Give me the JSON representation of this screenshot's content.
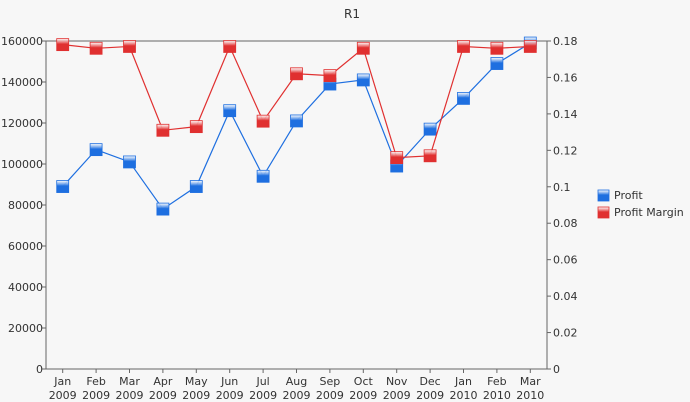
{
  "chart_data": {
    "type": "line",
    "title": "R1",
    "categories": [
      [
        "Jan",
        "2009"
      ],
      [
        "Feb",
        "2009"
      ],
      [
        "Mar",
        "2009"
      ],
      [
        "Apr",
        "2009"
      ],
      [
        "May",
        "2009"
      ],
      [
        "Jun",
        "2009"
      ],
      [
        "Jul",
        "2009"
      ],
      [
        "Aug",
        "2009"
      ],
      [
        "Sep",
        "2009"
      ],
      [
        "Oct",
        "2009"
      ],
      [
        "Nov",
        "2009"
      ],
      [
        "Dec",
        "2009"
      ],
      [
        "Jan",
        "2010"
      ],
      [
        "Feb",
        "2010"
      ],
      [
        "Mar",
        "2010"
      ]
    ],
    "y_left": {
      "range": [
        0,
        160000
      ],
      "ticks": [
        0,
        20000,
        40000,
        60000,
        80000,
        100000,
        120000,
        140000,
        160000
      ],
      "tick_labels": [
        "0",
        "20000",
        "40000",
        "60000",
        "80000",
        "100000",
        "120000",
        "140000",
        "160000"
      ]
    },
    "y_right": {
      "range": [
        0,
        0.18
      ],
      "ticks": [
        0,
        0.02,
        0.04,
        0.06,
        0.08,
        0.1,
        0.12,
        0.14,
        0.16,
        0.18
      ],
      "tick_labels": [
        "0",
        "0.02",
        "0.04",
        "0.06",
        "0.08",
        "0.1",
        "0.12",
        "0.14",
        "0.16",
        "0.18"
      ]
    },
    "series": [
      {
        "name": "Profit",
        "axis": "left",
        "color": "#1e6fe0",
        "values": [
          89000,
          107000,
          101000,
          78000,
          89000,
          126000,
          94000,
          121000,
          139000,
          141000,
          99000,
          117000,
          132000,
          149000,
          159000
        ]
      },
      {
        "name": "Profit Margin",
        "axis": "right",
        "color": "#e03030",
        "values": [
          0.178,
          0.176,
          0.177,
          0.131,
          0.133,
          0.177,
          0.136,
          0.162,
          0.161,
          0.176,
          0.116,
          0.117,
          0.177,
          0.176,
          0.177
        ]
      }
    ],
    "legend_position": "right",
    "grid": false
  }
}
